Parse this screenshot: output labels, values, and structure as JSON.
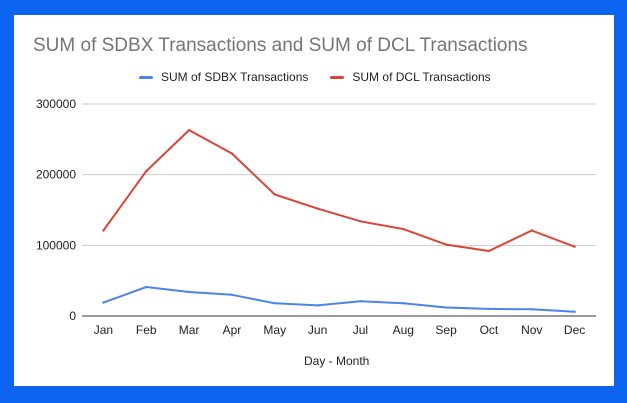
{
  "chart_data": {
    "type": "line",
    "title": "SUM of SDBX Transactions and SUM of DCL Transactions",
    "xlabel": "Day - Month",
    "ylabel": "",
    "categories": [
      "Jan",
      "Feb",
      "Mar",
      "Apr",
      "May",
      "Jun",
      "Jul",
      "Aug",
      "Sep",
      "Oct",
      "Nov",
      "Dec"
    ],
    "ylim": [
      0,
      300000
    ],
    "yticks": [
      "0",
      "100000",
      "200000",
      "300000"
    ],
    "grid": true,
    "legend_position": "top",
    "series": [
      {
        "name": "SUM of SDBX Transactions",
        "color": "#4a86e8",
        "values": [
          19000,
          41000,
          34000,
          30000,
          18000,
          15000,
          21000,
          18000,
          12000,
          10000,
          9500,
          6000
        ]
      },
      {
        "name": "SUM of DCL Transactions",
        "color": "#db4437",
        "values": [
          121000,
          205000,
          263000,
          230000,
          172000,
          152000,
          134000,
          123000,
          101000,
          92000,
          121000,
          98000
        ]
      }
    ]
  }
}
